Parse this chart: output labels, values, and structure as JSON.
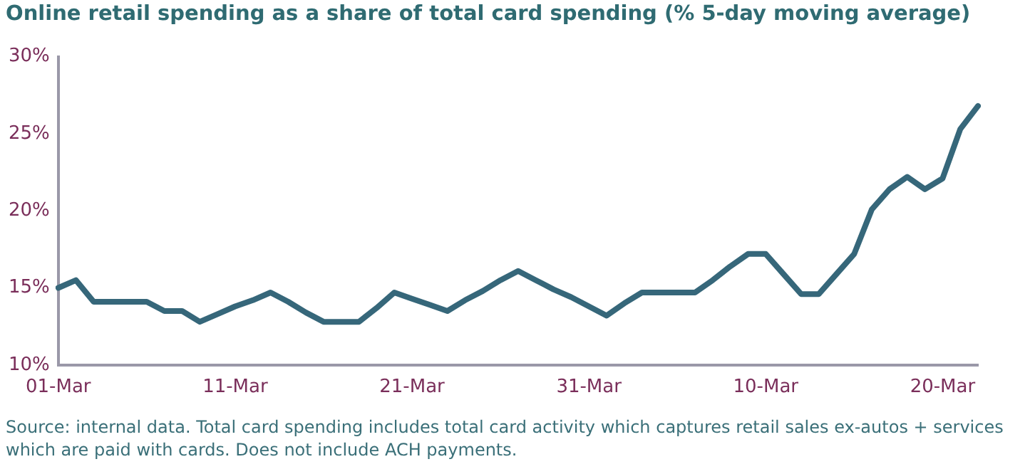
{
  "chart_data": {
    "type": "line",
    "title": "Online retail spending as a share of total card spending (% 5-day moving average)",
    "categories": [
      "01-Mar",
      null,
      null,
      null,
      null,
      null,
      null,
      null,
      null,
      null,
      "11-Mar",
      null,
      null,
      null,
      null,
      null,
      null,
      null,
      null,
      null,
      "21-Mar",
      null,
      null,
      null,
      null,
      null,
      null,
      null,
      null,
      null,
      "31-Mar",
      null,
      null,
      null,
      null,
      null,
      null,
      null,
      null,
      null,
      "10-Mar",
      null,
      null,
      null,
      null,
      null,
      null,
      null,
      null,
      null,
      "20-Mar",
      null,
      null
    ],
    "series": [
      {
        "color": "#36677a",
        "values": [
          15.0,
          15.5,
          14.1,
          14.1,
          14.1,
          14.1,
          13.5,
          13.5,
          12.8,
          13.3,
          13.8,
          14.2,
          14.7,
          14.1,
          13.4,
          12.8,
          12.8,
          12.8,
          13.7,
          14.7,
          14.3,
          13.9,
          13.5,
          14.2,
          14.8,
          15.5,
          16.1,
          15.5,
          14.9,
          14.4,
          13.8,
          13.2,
          14.0,
          14.7,
          14.7,
          14.7,
          14.7,
          15.5,
          16.4,
          17.2,
          17.2,
          15.9,
          14.6,
          14.6,
          15.9,
          17.2,
          20.1,
          21.4,
          22.2,
          21.4,
          22.1,
          25.3,
          26.8
        ]
      }
    ],
    "ylim": [
      10,
      30
    ],
    "yticks": [
      {
        "value": 10,
        "label": "10%"
      },
      {
        "value": 15,
        "label": "15%"
      },
      {
        "value": 20,
        "label": "20%"
      },
      {
        "value": 25,
        "label": "25%"
      },
      {
        "value": 30,
        "label": "30%"
      }
    ],
    "grid": false,
    "legend": false,
    "marker": "none",
    "line_style": "solid",
    "annotations": [
      "Source: internal data. Total card spending includes total card activity which captures retail sales ex-autos + services which are paid with cards. Does not include ACH payments."
    ]
  }
}
